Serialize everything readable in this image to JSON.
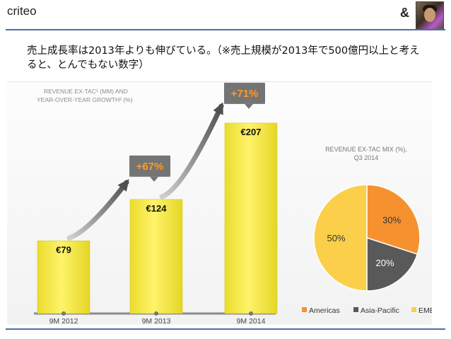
{
  "header": {
    "title": "criteo",
    "logo": "&"
  },
  "lead": {
    "text": "売上成長率は2013年よりも伸びている。（※売上規模が2013年で500億円以上と考えると、とんでもない数字）"
  },
  "chart_data": [
    {
      "type": "bar",
      "title_line1": "REVENUE EX-TAC¹ (MM) AND",
      "title_line2": "YEAR-OVER-YEAR GROWTH² (%)",
      "categories": [
        "9M 2012",
        "9M 2013",
        "9M 2014"
      ],
      "values": [
        79,
        124,
        207
      ],
      "value_labels": [
        "€79",
        "€124",
        "€207"
      ],
      "growth_labels": [
        "+67%",
        "+71%"
      ],
      "ylim": [
        0,
        230
      ],
      "colors": {
        "bar": "#f6ea3b",
        "callout": "#747474",
        "growth_text": "#ff9a22"
      }
    },
    {
      "type": "pie",
      "title_line1": "REVENUE EX-TAC MIX (%),",
      "title_line2": "Q3 2014",
      "slices": [
        {
          "name": "Americas",
          "value": 30,
          "label": "30%",
          "color": "#f5922f"
        },
        {
          "name": "Asia-Pacific",
          "value": 20,
          "label": "20%",
          "color": "#595959"
        },
        {
          "name": "EMEA",
          "value": 50,
          "label": "50%",
          "color": "#fbcf4a"
        }
      ],
      "legend_position": "bottom"
    }
  ]
}
